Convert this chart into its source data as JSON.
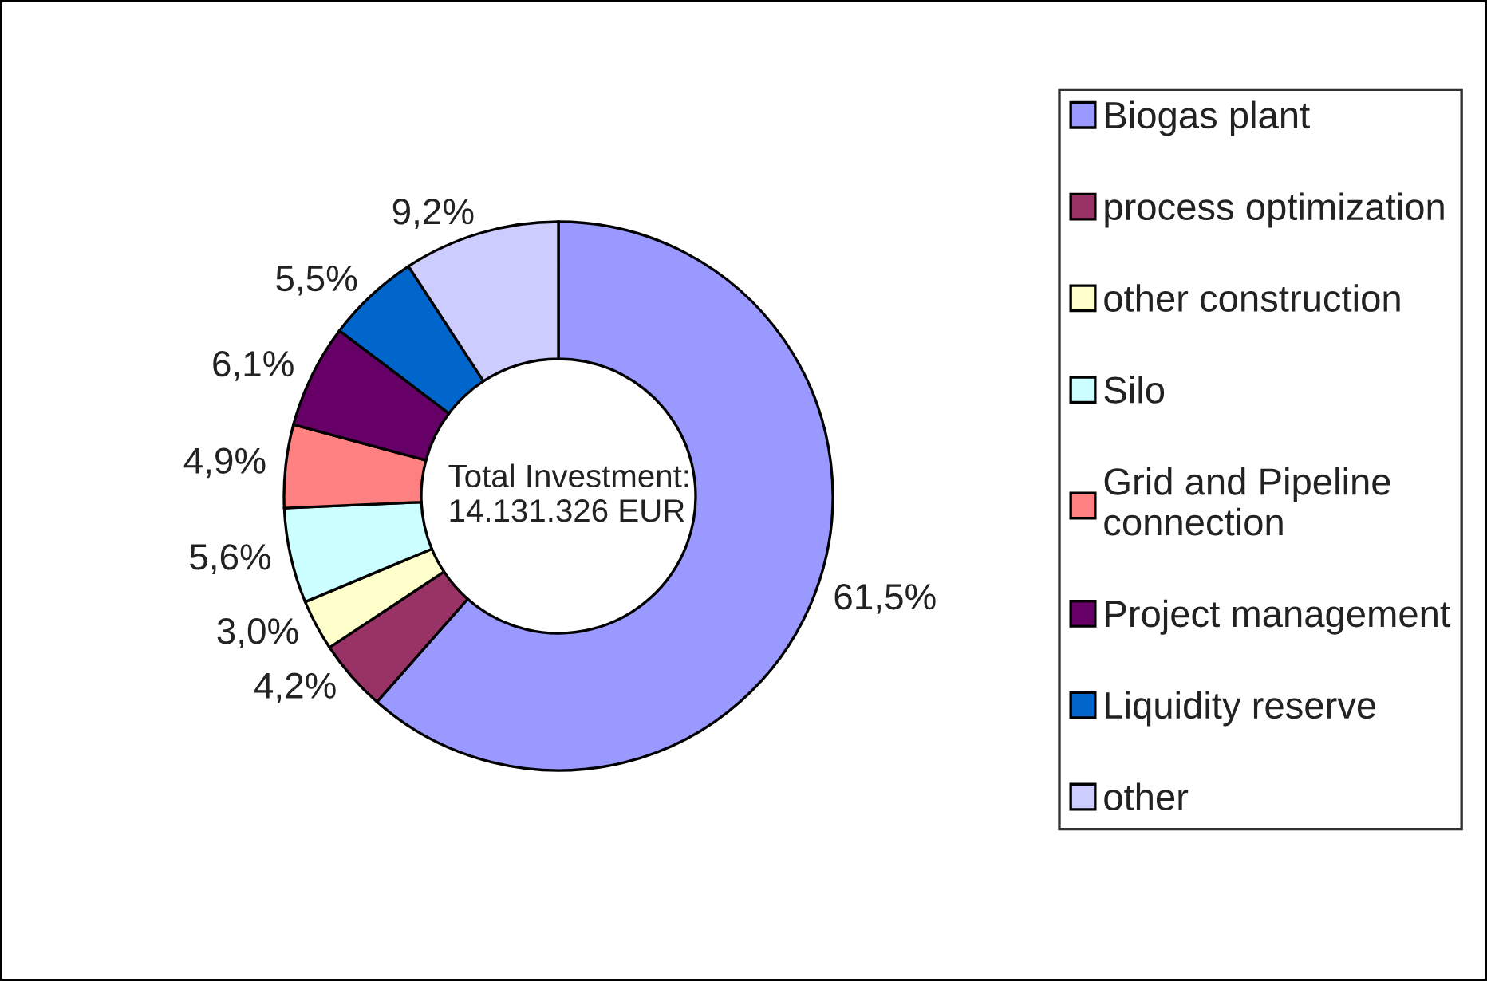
{
  "chart_data": {
    "type": "donut",
    "categories": [
      "Biogas plant",
      "process optimization",
      "other construction",
      "Silo",
      "Grid and Pipeline\nconnection",
      "Project management",
      "Liquidity reserve",
      "other"
    ],
    "values": [
      61.5,
      4.2,
      3.0,
      5.6,
      4.9,
      6.1,
      5.5,
      9.2
    ],
    "colors": [
      "#9999ff",
      "#993366",
      "#ffffcc",
      "#ccffff",
      "#ff8080",
      "#660066",
      "#0066cc",
      "#ccccff"
    ],
    "value_labels": [
      "61,5%",
      "4,2%",
      "3,0%",
      "5,6%",
      "4,9%",
      "6,1%",
      "5,5%",
      "9,2%"
    ],
    "annotations": [
      "Total Investment:\n14.131.326 EUR"
    ],
    "legend": "right"
  }
}
